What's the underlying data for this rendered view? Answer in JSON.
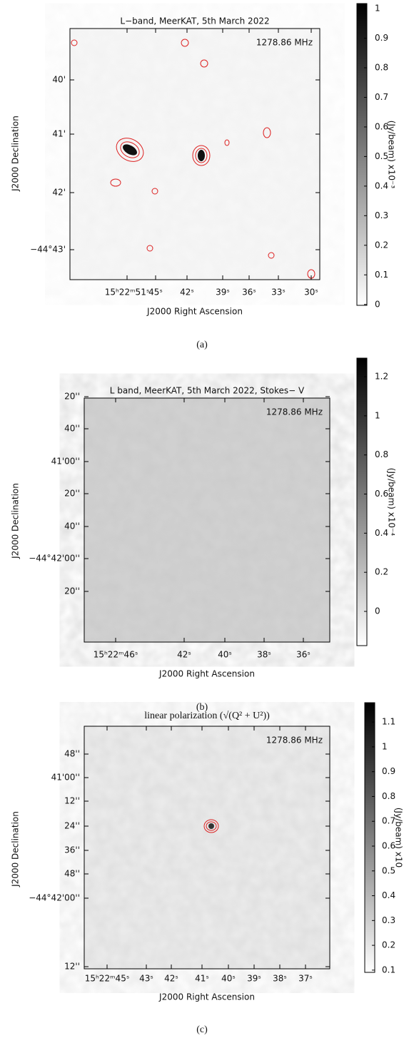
{
  "panels": [
    {
      "title": "L−band, MeerKAT, 5th March 2022",
      "frequency": "1278.86 MHz",
      "y_label": "J2000 Declination",
      "x_label": "J2000 Right Ascension",
      "y_ticks": [
        "40'",
        "41'",
        "42'",
        "−44°43'"
      ],
      "x_ticks": [
        "15ʰ22ᵐ51ˢ",
        "45ˢ",
        "42ˢ",
        "39ˢ",
        "36ˢ",
        "33ˢ",
        "30ˢ"
      ],
      "colorbar": {
        "lim": [
          -0.003,
          1.017
        ],
        "ticks": [
          0,
          0.1,
          0.2,
          0.3,
          0.4,
          0.5,
          0.6,
          0.7,
          0.8,
          0.9,
          1
        ],
        "label": "(Jy/beam)  x10⁻³"
      },
      "caption": "(a)"
    },
    {
      "title": "L band, MeerKAT, 5th March 2022, Stokes− V",
      "frequency": "1278.86 MHz",
      "y_label": "J2000 Declination",
      "x_label": "J2000 Right Ascension",
      "y_ticks": [
        "20''",
        "40''",
        "41'00''",
        "20''",
        "40''",
        "−44°42'00''",
        "20''"
      ],
      "x_ticks": [
        "15ʰ22ᵐ46ˢ",
        "42ˢ",
        "40ˢ",
        "38ˢ",
        "36ˢ"
      ],
      "colorbar": {
        "lim": [
          -0.175,
          1.295
        ],
        "ticks": [
          0,
          0.2,
          0.4,
          0.6,
          0.8,
          1,
          1.2
        ],
        "label": "(Jy/beam)  x10⁻⁴"
      },
      "caption": "(b)"
    },
    {
      "title": "linear polarization (√(Q² + U²))",
      "frequency": "1278.86 MHz",
      "y_label": "J2000 Declination",
      "x_label": "J2000 Right Ascension",
      "y_ticks": [
        "48''",
        "41'00''",
        "12''",
        "24''",
        "36''",
        "48''",
        "−44°42'00''",
        "12''"
      ],
      "x_ticks": [
        "15ʰ22ᵐ45ˢ",
        "43ˢ",
        "42ˢ",
        "41ˢ",
        "40ˢ",
        "39ˢ",
        "38ˢ",
        "37ˢ"
      ],
      "colorbar": {
        "lim": [
          0.091,
          1.178
        ],
        "ticks": [
          0.1,
          0.2,
          0.3,
          0.4,
          0.5,
          0.6,
          0.7,
          0.8,
          0.9,
          1,
          1.1
        ],
        "label": "(Jy/beam) x10"
      },
      "caption": "(c)"
    }
  ]
}
